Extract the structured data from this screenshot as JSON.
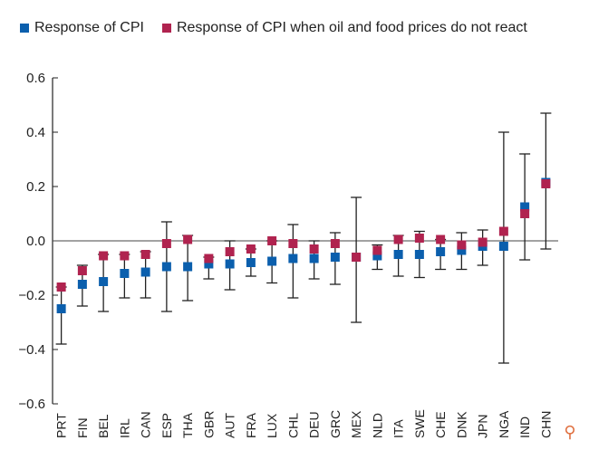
{
  "chart_data": {
    "type": "scatter",
    "title": "",
    "xlabel": "",
    "ylabel": "",
    "ylim": [
      -0.6,
      0.6
    ],
    "yticks": [
      "0.6",
      "0.4",
      "0.2",
      "0.0",
      "−0.2",
      "−0.4",
      "−0.6"
    ],
    "ytick_values": [
      0.6,
      0.4,
      0.2,
      0,
      -0.2,
      -0.4,
      -0.6
    ],
    "legend_placement": "top",
    "categories": [
      "PRT",
      "FIN",
      "BEL",
      "IRL",
      "CAN",
      "ESP",
      "THA",
      "GBR",
      "AUT",
      "FRA",
      "LUX",
      "CHL",
      "DEU",
      "GRC",
      "MEX",
      "NLD",
      "ITA",
      "SWE",
      "CHE",
      "DNK",
      "JPN",
      "NGA",
      "IND",
      "CHN"
    ],
    "series": [
      {
        "name": "Response of CPI",
        "color": "#0b5fad",
        "values": [
          -0.25,
          -0.16,
          -0.15,
          -0.12,
          -0.115,
          -0.095,
          -0.095,
          -0.085,
          -0.085,
          -0.08,
          -0.075,
          -0.065,
          -0.065,
          -0.06,
          -0.06,
          -0.055,
          -0.05,
          -0.05,
          -0.04,
          -0.035,
          -0.02,
          -0.02,
          0.125,
          0.215
        ]
      },
      {
        "name": "Response of CPI when oil and food prices do not react",
        "color": "#b0234f",
        "values": [
          -0.17,
          -0.11,
          -0.055,
          -0.055,
          -0.05,
          -0.01,
          0.005,
          -0.065,
          -0.04,
          -0.03,
          0.0,
          -0.01,
          -0.03,
          -0.01,
          -0.06,
          -0.035,
          0.005,
          0.01,
          0.005,
          -0.015,
          -0.005,
          0.035,
          0.1,
          0.21
        ]
      }
    ],
    "error_bars": {
      "low": [
        -0.38,
        -0.24,
        -0.26,
        -0.21,
        -0.21,
        -0.26,
        -0.22,
        -0.14,
        -0.18,
        -0.13,
        -0.155,
        -0.21,
        -0.14,
        -0.16,
        -0.3,
        -0.105,
        -0.13,
        -0.135,
        -0.105,
        -0.105,
        -0.09,
        -0.45,
        -0.07,
        -0.03
      ],
      "high": [
        -0.17,
        -0.09,
        -0.05,
        -0.05,
        -0.04,
        0.07,
        0.02,
        -0.06,
        0.0,
        -0.03,
        0.0,
        0.06,
        0.0,
        0.03,
        0.16,
        -0.015,
        0.02,
        0.035,
        0.005,
        0.03,
        0.04,
        0.4,
        0.32,
        0.47
      ]
    }
  },
  "ui": {
    "zoom_icon": "zoom-in-magnifier-icon",
    "zoom_glyph": "⚲"
  }
}
